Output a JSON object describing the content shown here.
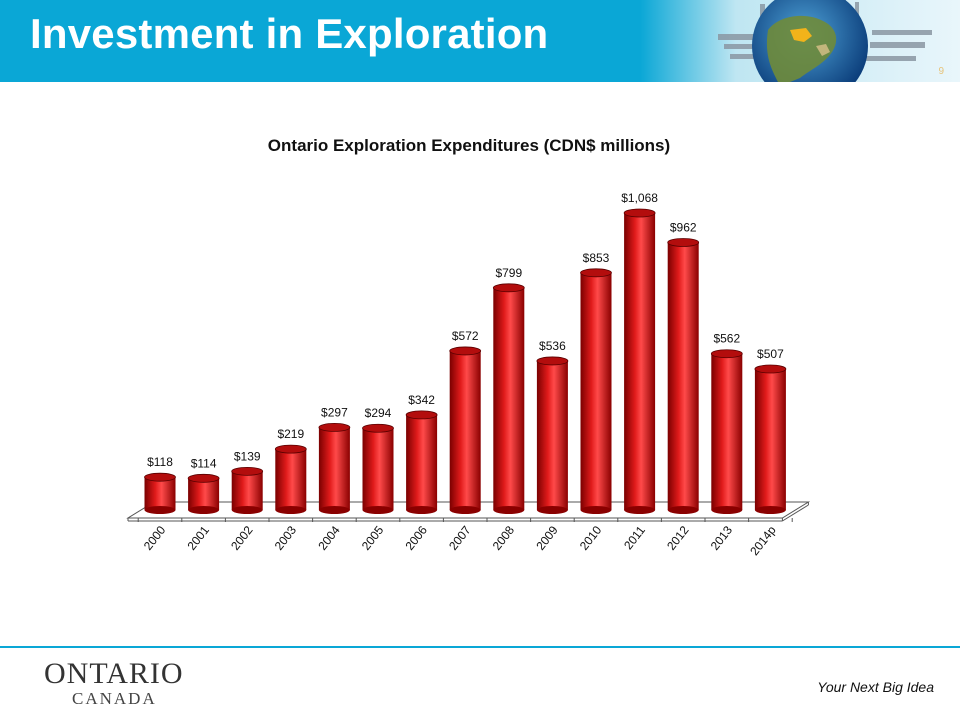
{
  "slide": {
    "title": "Investment in Exploration",
    "page_number": "9",
    "tagline": "Your Next Big Idea",
    "logo": {
      "top_text": "ONTARIO",
      "bottom_text": "CANADA"
    }
  },
  "colors": {
    "header": "#0aa7d6",
    "bar": "#cc0c0c",
    "bar_dark": "#7a0000",
    "bar_light": "#ff5a5a"
  },
  "chart_data": {
    "type": "bar",
    "title": "Ontario Exploration Expenditures  (CDN$ millions)",
    "categories": [
      "2000",
      "2001",
      "2002",
      "2003",
      "2004",
      "2005",
      "2006",
      "2007",
      "2008",
      "2009",
      "2010",
      "2011",
      "2012",
      "2013",
      "2014p"
    ],
    "values": [
      118,
      114,
      139,
      219,
      297,
      294,
      342,
      572,
      799,
      536,
      853,
      1068,
      962,
      562,
      507
    ],
    "data_labels": [
      "$118",
      "$114",
      "$139",
      "$219",
      "$297",
      "$294",
      "$342",
      "$572",
      "$799",
      "$536",
      "$853",
      "$1,068",
      "$962",
      "$562",
      "$507"
    ],
    "ylim": [
      0,
      1100
    ],
    "grid": false,
    "legend": "none"
  }
}
